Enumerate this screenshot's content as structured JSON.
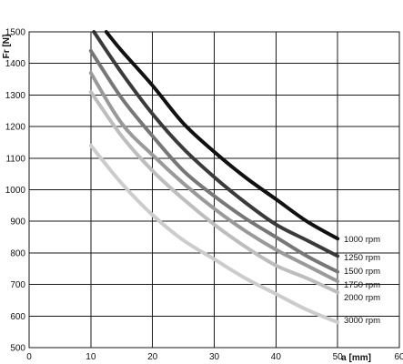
{
  "chart_data": {
    "type": "line",
    "title": "",
    "xlabel": "a [mm]",
    "ylabel": "Fr [N]",
    "xlim": [
      0,
      60
    ],
    "ylim": [
      500,
      1500
    ],
    "x_ticks": [
      0,
      10,
      20,
      30,
      40,
      50,
      60
    ],
    "y_ticks": [
      500,
      600,
      700,
      800,
      900,
      1000,
      1100,
      1200,
      1300,
      1400,
      1500
    ],
    "grid": true,
    "legend": "labels at right end of each line",
    "series": [
      {
        "name": "1000 rpm",
        "color": "#111111",
        "x": [
          12.5,
          15,
          20,
          25,
          30,
          35,
          40,
          45,
          50
        ],
        "y": [
          1500,
          1440,
          1330,
          1210,
          1120,
          1040,
          970,
          900,
          845
        ]
      },
      {
        "name": "1250 rpm",
        "color": "#3a3a3a",
        "x": [
          10.5,
          15,
          20,
          25,
          30,
          35,
          40,
          45,
          50
        ],
        "y": [
          1500,
          1370,
          1240,
          1130,
          1040,
          960,
          890,
          840,
          790
        ]
      },
      {
        "name": "1500 rpm",
        "color": "#777777",
        "x": [
          10,
          15,
          20,
          25,
          30,
          35,
          40,
          45,
          50
        ],
        "y": [
          1440,
          1290,
          1170,
          1060,
          980,
          910,
          850,
          790,
          740
        ]
      },
      {
        "name": "1750 rpm",
        "color": "#9a9a9a",
        "x": [
          10,
          15,
          20,
          25,
          30,
          35,
          40,
          45,
          50
        ],
        "y": [
          1370,
          1210,
          1110,
          1020,
          940,
          870,
          810,
          760,
          710
        ]
      },
      {
        "name": "2000 rpm",
        "color": "#bdbdbd",
        "x": [
          10,
          15,
          20,
          25,
          30,
          35,
          40,
          45,
          50
        ],
        "y": [
          1310,
          1170,
          1060,
          970,
          890,
          820,
          760,
          720,
          675
        ]
      },
      {
        "name": "3000 rpm",
        "color": "#cccccc",
        "x": [
          10,
          15,
          20,
          25,
          30,
          35,
          40,
          45,
          50
        ],
        "y": [
          1140,
          1020,
          920,
          840,
          780,
          720,
          670,
          620,
          580
        ]
      }
    ]
  }
}
